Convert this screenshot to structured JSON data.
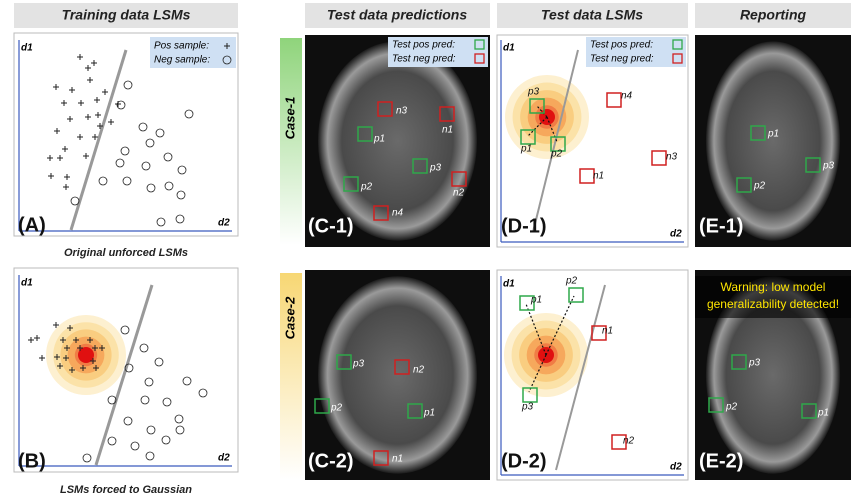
{
  "training": {
    "title": "Training data LSMs",
    "legend": {
      "pos": "Pos sample:",
      "neg": "Neg sample:"
    },
    "axis": {
      "y": "d1",
      "x": "d2"
    },
    "panel_a": "(A)",
    "caption_a": "Original unforced LSMs",
    "panel_b": "(B)",
    "caption_b": "LSMs forced to Gaussian"
  },
  "columns": [
    "Test data predictions",
    "Test data LSMs",
    "Reporting"
  ],
  "test_legend": {
    "pos": "Test pos pred:",
    "neg": "Test neg pred:"
  },
  "cases": [
    {
      "name": "Case-1",
      "panels": [
        "(C-1)",
        "(D-1)",
        "(E-1)"
      ]
    },
    {
      "name": "Case-2",
      "panels": [
        "(C-2)",
        "(D-2)",
        "(E-2)"
      ],
      "warning": [
        "Warning: low model",
        "generalizability detected!"
      ]
    }
  ],
  "markers": {
    "p1": "p1",
    "p2": "p2",
    "p3": "p3",
    "n1": "n1",
    "n2": "n2",
    "n3": "n3",
    "n4": "n4"
  }
}
